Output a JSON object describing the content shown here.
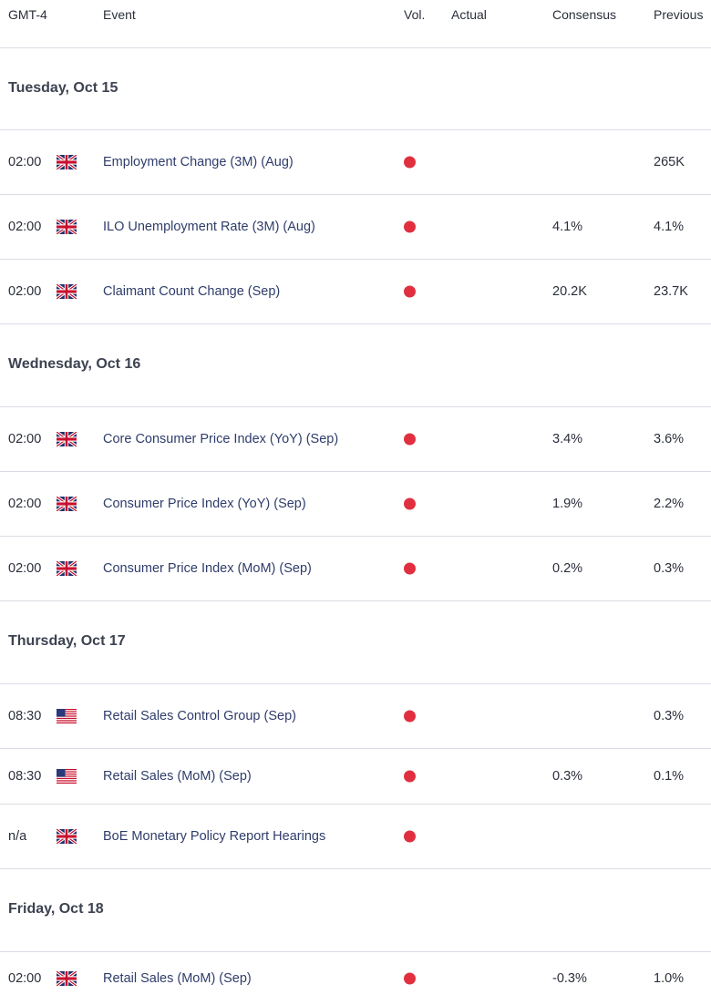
{
  "header": {
    "timezone": "GMT-4",
    "event": "Event",
    "vol": "Vol.",
    "actual": "Actual",
    "consensus": "Consensus",
    "previous": "Previous"
  },
  "colors": {
    "high_importance_dot": "#e0303f",
    "event_text": "#2f3d6b"
  },
  "days": [
    {
      "label": "Tuesday, Oct 15",
      "events": [
        {
          "time": "02:00",
          "flag": "uk-flag-icon",
          "event": "Employment Change (3M) (Aug)",
          "actual": "",
          "consensus": "",
          "previous": "265K"
        },
        {
          "time": "02:00",
          "flag": "uk-flag-icon",
          "event": "ILO Unemployment Rate (3M) (Aug)",
          "actual": "",
          "consensus": "4.1%",
          "previous": "4.1%"
        },
        {
          "time": "02:00",
          "flag": "uk-flag-icon",
          "event": "Claimant Count Change (Sep)",
          "actual": "",
          "consensus": "20.2K",
          "previous": "23.7K"
        }
      ]
    },
    {
      "label": "Wednesday, Oct 16",
      "events": [
        {
          "time": "02:00",
          "flag": "uk-flag-icon",
          "event": "Core Consumer Price Index (YoY) (Sep)",
          "actual": "",
          "consensus": "3.4%",
          "previous": "3.6%"
        },
        {
          "time": "02:00",
          "flag": "uk-flag-icon",
          "event": "Consumer Price Index (YoY) (Sep)",
          "actual": "",
          "consensus": "1.9%",
          "previous": "2.2%"
        },
        {
          "time": "02:00",
          "flag": "uk-flag-icon",
          "event": "Consumer Price Index (MoM) (Sep)",
          "actual": "",
          "consensus": "0.2%",
          "previous": "0.3%"
        }
      ]
    },
    {
      "label": "Thursday, Oct 17",
      "events": [
        {
          "time": "08:30",
          "flag": "us-flag-icon",
          "event": "Retail Sales Control Group (Sep)",
          "actual": "",
          "consensus": "",
          "previous": "0.3%"
        },
        {
          "time": "08:30",
          "flag": "us-flag-icon",
          "event": "Retail Sales (MoM) (Sep)",
          "actual": "",
          "consensus": "0.3%",
          "previous": "0.1%"
        },
        {
          "time": "n/a",
          "flag": "uk-flag-icon",
          "event": "BoE Monetary Policy Report Hearings",
          "actual": "",
          "consensus": "",
          "previous": ""
        }
      ]
    },
    {
      "label": "Friday, Oct 18",
      "events": [
        {
          "time": "02:00",
          "flag": "uk-flag-icon",
          "event": "Retail Sales (MoM) (Sep)",
          "actual": "",
          "consensus": "-0.3%",
          "previous": "1.0%"
        }
      ]
    }
  ]
}
